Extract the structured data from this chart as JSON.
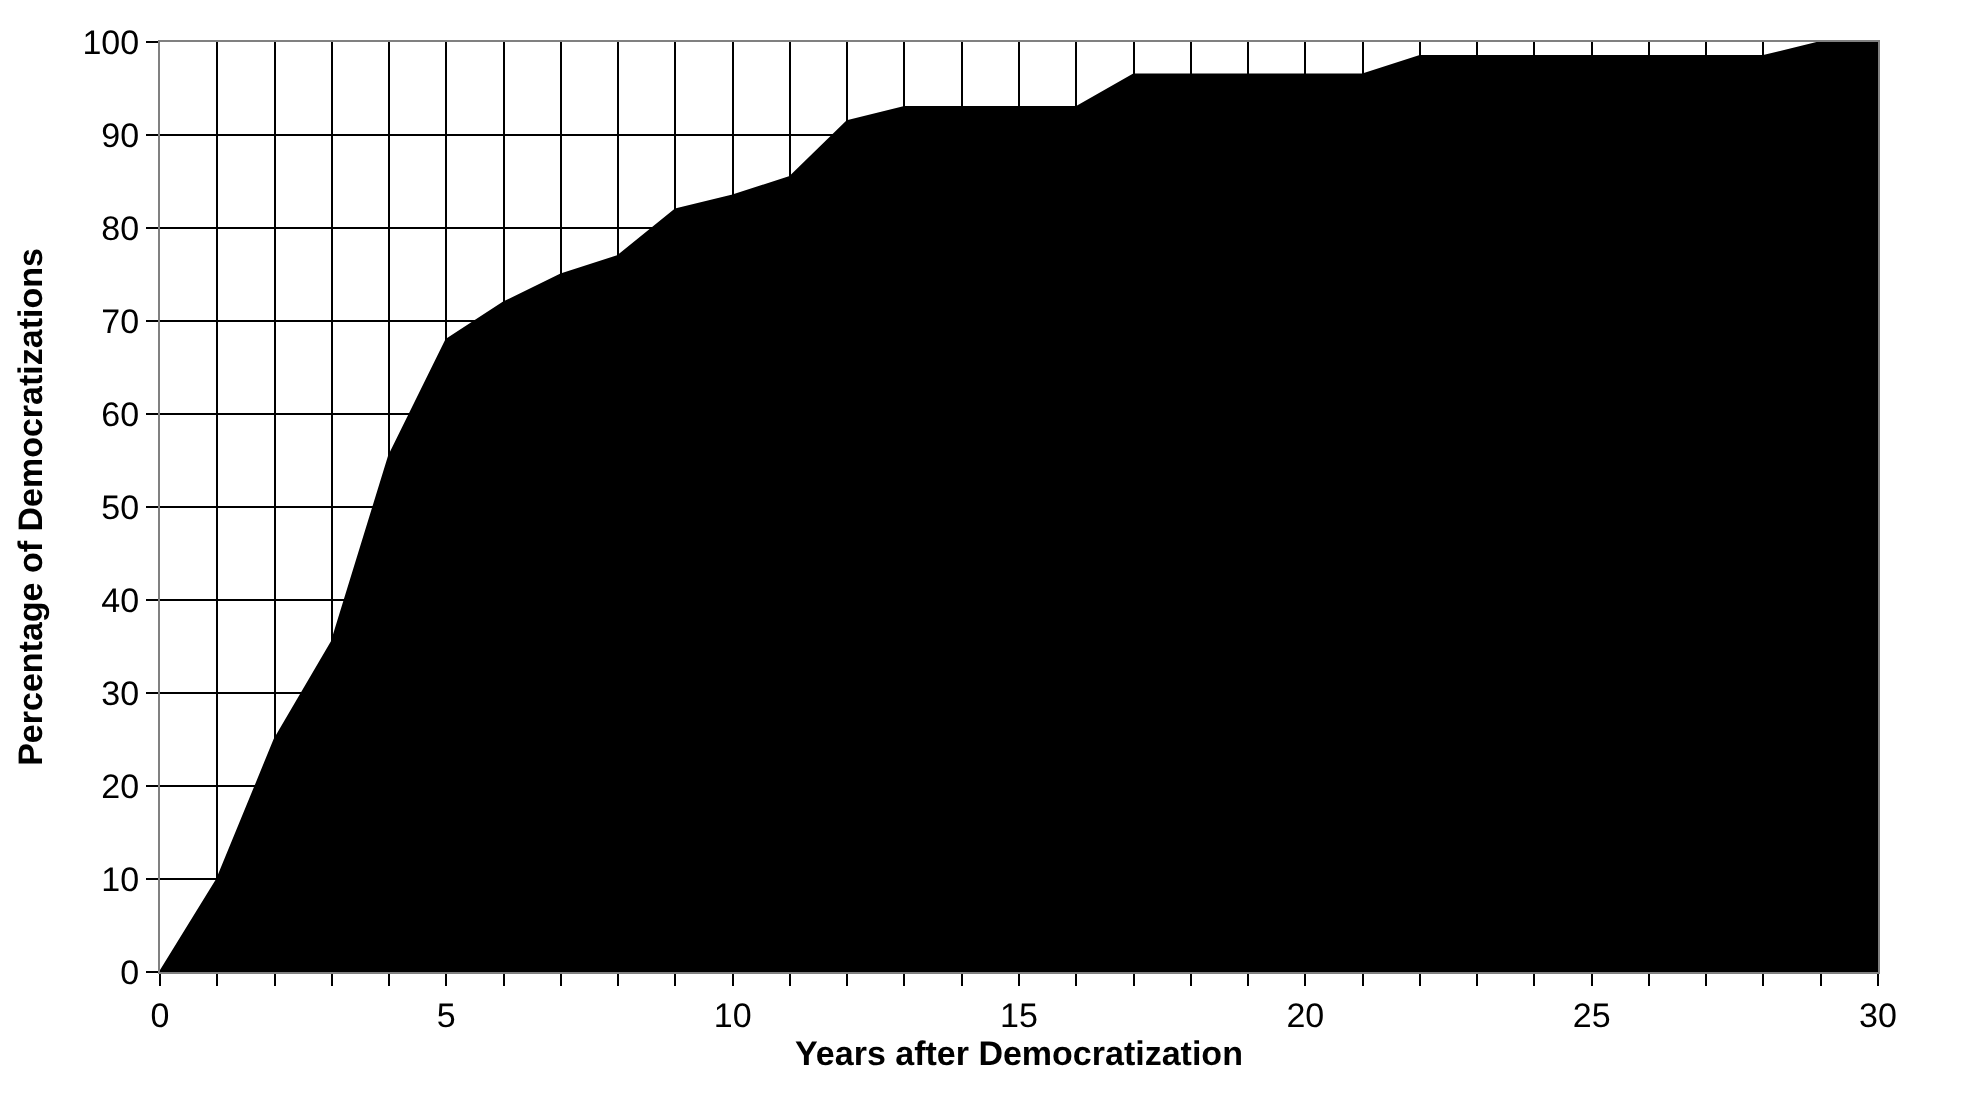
{
  "chart_data": {
    "type": "area",
    "xlabel": "Years after Democratization",
    "ylabel": "Percentage of Democratizations",
    "x": [
      0,
      1,
      2,
      3,
      4,
      5,
      6,
      7,
      8,
      9,
      10,
      11,
      12,
      13,
      14,
      15,
      16,
      17,
      18,
      19,
      20,
      21,
      22,
      23,
      24,
      25,
      26,
      27,
      28,
      29,
      30
    ],
    "series": [
      {
        "color": "#000000",
        "values": [
          0,
          10,
          25,
          35.5,
          55.5,
          68,
          72,
          75,
          77,
          82,
          83.5,
          85.5,
          91.5,
          93,
          93,
          93,
          93,
          96.5,
          96.5,
          96.5,
          96.5,
          96.5,
          98.5,
          98.5,
          98.5,
          98.5,
          98.5,
          98.5,
          98.5,
          100,
          100
        ]
      }
    ],
    "xlim": [
      0,
      30
    ],
    "xticks": [
      0,
      5,
      10,
      15,
      20,
      25,
      30
    ],
    "ylim": [
      0,
      100
    ],
    "yticks": [
      0,
      10,
      20,
      30,
      40,
      50,
      60,
      70,
      80,
      90,
      100
    ],
    "grid": true
  }
}
